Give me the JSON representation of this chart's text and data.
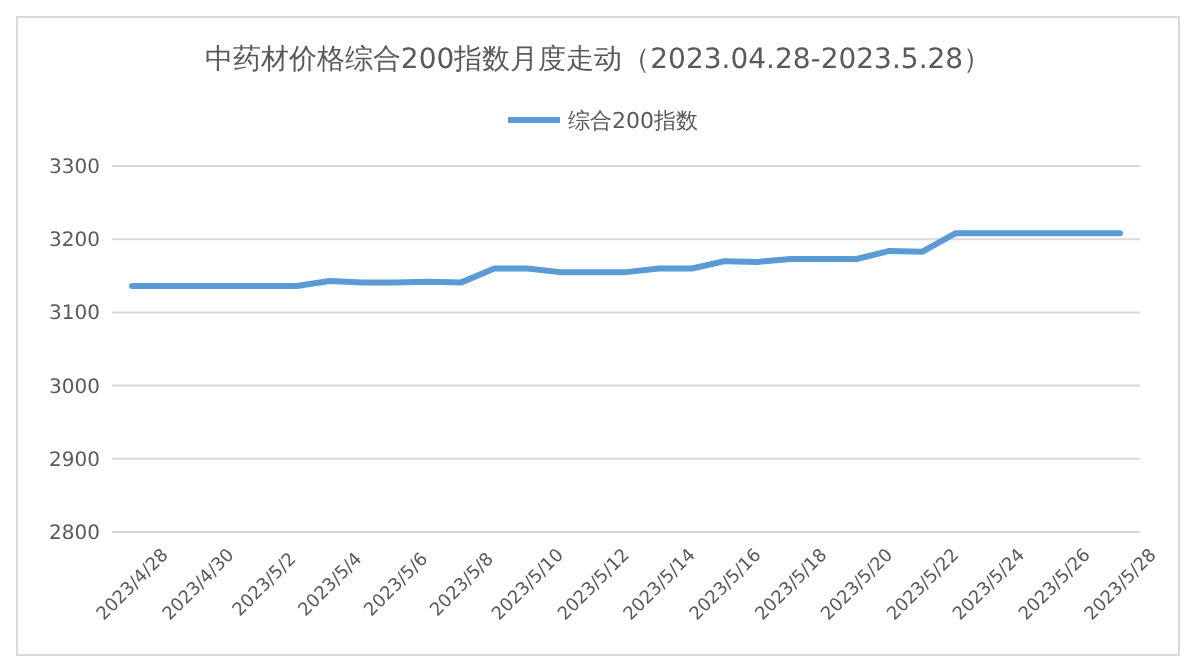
{
  "chart_data": {
    "type": "line",
    "title": "中药材价格综合200指数月度走动（2023.04.28-2023.5.28）",
    "categories": [
      "2023/4/28",
      null,
      "2023/4/30",
      null,
      "2023/5/2",
      null,
      "2023/5/4",
      null,
      "2023/5/6",
      null,
      "2023/5/8",
      null,
      "2023/5/10",
      null,
      "2023/5/12",
      null,
      "2023/5/14",
      null,
      "2023/5/16",
      null,
      "2023/5/18",
      null,
      "2023/5/20",
      null,
      "2023/5/22",
      null,
      "2023/5/24",
      null,
      "2023/5/26",
      null,
      "2023/5/28"
    ],
    "series": [
      {
        "name": "综合200指数",
        "color": "#5b9bd5",
        "values": [
          3136,
          3136,
          3136,
          3136,
          3136,
          3136,
          3143,
          3141,
          3141,
          3142,
          3141,
          3160,
          3160,
          3155,
          3155,
          3155,
          3160,
          3160,
          3170,
          3169,
          3173,
          3173,
          3173,
          3184,
          3183,
          3208,
          3208,
          3208,
          3208,
          3208,
          3208
        ]
      }
    ],
    "ylim": [
      2800,
      3300
    ],
    "yticks": [
      2800,
      2900,
      3000,
      3100,
      3200,
      3300
    ],
    "grid": "y",
    "legend": "top",
    "marker": "none",
    "line_style": "solid"
  }
}
